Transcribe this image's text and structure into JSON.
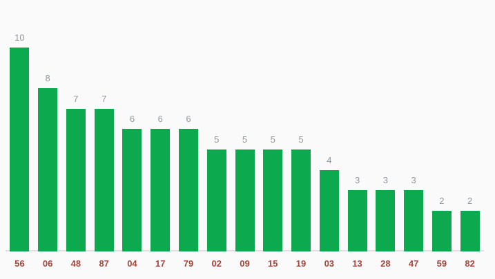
{
  "chart_data": {
    "type": "bar",
    "categories": [
      "56",
      "06",
      "48",
      "87",
      "04",
      "17",
      "79",
      "02",
      "09",
      "15",
      "19",
      "03",
      "13",
      "28",
      "47",
      "59",
      "82"
    ],
    "values": [
      10,
      8,
      7,
      7,
      6,
      6,
      6,
      5,
      5,
      5,
      5,
      4,
      3,
      3,
      3,
      2,
      2
    ],
    "title": "",
    "xlabel": "",
    "ylabel": "",
    "ylim": [
      0,
      10
    ],
    "grid": false,
    "legend": "none",
    "value_labels_shown": true,
    "colors": {
      "bar": "#0ca94e",
      "value_label": "#8e979e",
      "category_label": "#a6473d",
      "axis_line": "#e0e0e0",
      "background": "#fafafa"
    }
  }
}
